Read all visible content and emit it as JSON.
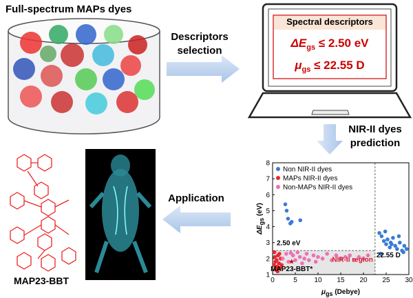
{
  "library": {
    "title": "Full-spectrum MAPs dyes"
  },
  "step1": {
    "label_line1": "Descriptors",
    "label_line2": "selection"
  },
  "laptop": {
    "header": "Spectral descriptors",
    "criterion1": {
      "symbol": "ΔE",
      "subscript": "gs",
      "rest": " ≤ 2.50 eV"
    },
    "criterion2": {
      "symbol": "μ",
      "subscript": "gs",
      "rest": " ≤ 22.55 D"
    }
  },
  "step2": {
    "label_line1": "NIR-II dyes",
    "label_line2": "prediction"
  },
  "step3": {
    "label": "Application"
  },
  "molecule": {
    "name": "MAP23-BBT"
  },
  "scatter": {
    "ylabel": {
      "symbol": "ΔE",
      "subscript": "gs",
      "rest": " (eV)"
    },
    "xlabel": {
      "symbol": "μ",
      "subscript": "gs",
      "rest": " (Debye)"
    },
    "xlim": [
      0,
      30
    ],
    "xticks": [
      0,
      5,
      10,
      15,
      20,
      25,
      30
    ],
    "ylim": [
      1,
      8
    ],
    "yticks": [
      1,
      2,
      3,
      4,
      5,
      6,
      7,
      8
    ],
    "energy_threshold": 2.5,
    "energy_label": "2.50 eV",
    "dipole_threshold": 22.55,
    "dipole_label": "22.55 D",
    "region_label": "NIR-II region",
    "highlight": {
      "name": "MAP23-BBT*",
      "x": 4.2,
      "y": 1.85
    },
    "series": [
      {
        "name": "Non NIR-II dyes",
        "color": "#3a7bd5",
        "x": [
          2.8,
          3.1,
          3.4,
          4.2,
          3.9,
          6.1,
          23.5,
          24,
          24.5,
          25,
          25.3,
          25.8,
          26,
          26.5,
          27,
          27.4,
          28,
          28.5,
          29,
          29.5,
          23.8,
          26.2,
          27.8,
          24.8,
          28.8
        ],
        "y": [
          5.4,
          5.0,
          4.5,
          4.3,
          4.2,
          4.4,
          3.6,
          3.4,
          3.1,
          2.9,
          3.2,
          2.7,
          3.0,
          3.3,
          2.8,
          2.6,
          3.0,
          2.5,
          2.8,
          2.6,
          2.3,
          2.9,
          3.4,
          3.7,
          2.4
        ]
      },
      {
        "name": "MAPs NIR-II dyes",
        "color": "#e8282e",
        "x": [
          0.3,
          0.5,
          0.7,
          0.9,
          1.0,
          1.2,
          1.4,
          1.6,
          1.8,
          0.6,
          1.1,
          1.5,
          2.0,
          0.4
        ],
        "y": [
          1.6,
          2.1,
          1.3,
          1.9,
          1.5,
          2.2,
          1.7,
          1.4,
          2.0,
          1.8,
          1.2,
          2.3,
          1.6,
          2.4
        ]
      },
      {
        "name": "Non-MAPs NIR-II dyes",
        "color": "#f06fb6",
        "x": [
          2.2,
          3,
          3.5,
          4.5,
          5,
          5.5,
          6,
          7,
          7.5,
          8,
          9,
          10,
          11,
          12,
          13,
          14,
          15,
          16,
          17,
          18,
          19,
          20,
          21,
          6.5,
          9.5,
          4
        ],
        "y": [
          2.0,
          2.3,
          1.8,
          2.2,
          1.9,
          2.4,
          2.1,
          2.0,
          2.3,
          1.9,
          2.2,
          2.1,
          2.0,
          2.3,
          1.9,
          2.2,
          2.0,
          2.1,
          2.2,
          1.9,
          2.1,
          2.0,
          2.2,
          1.7,
          1.8,
          2.35
        ]
      }
    ]
  }
}
